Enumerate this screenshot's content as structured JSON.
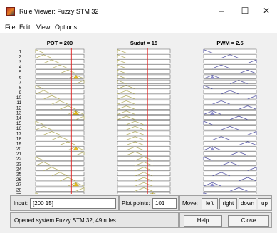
{
  "window": {
    "title": "Rule Viewer: Fuzzy STM 32",
    "minimize_glyph": "–",
    "maximize_glyph": "☐",
    "close_glyph": "✕",
    "icon": "matlab-app-icon"
  },
  "menu": [
    "File",
    "Edit",
    "View",
    "Options"
  ],
  "columns": [
    {
      "header": "POT = 200",
      "value": 200,
      "marker_fraction": 0.74
    },
    {
      "header": "Sudut = 15",
      "value": 15,
      "marker_fraction": 0.57
    },
    {
      "header": "PWM = 2.5",
      "value": 2.5
    }
  ],
  "rules_visible": [
    "1",
    "2",
    "3",
    "4",
    "5",
    "6",
    "7",
    "8",
    "9",
    "10",
    "11",
    "12",
    "13",
    "14",
    "15",
    "16",
    "17",
    "18",
    "19",
    "20",
    "21",
    "22",
    "23",
    "24",
    "25",
    "26",
    "27",
    "28",
    "29",
    "30"
  ],
  "rules_total": 49,
  "colors": {
    "mf_input": "#b9b36a",
    "mf_output": "#5a5aa8",
    "fire_fill": "#e8c020",
    "indicator": "#e02020"
  },
  "input": {
    "label": "Input:",
    "value": "[200 15]"
  },
  "plot_points": {
    "label": "Plot points:",
    "value": "101"
  },
  "move": {
    "label": "Move:",
    "buttons": [
      "left",
      "right",
      "down",
      "up"
    ]
  },
  "status": "Opened system Fuzzy STM 32, 49 rules",
  "help_label": "Help",
  "close_label": "Close"
}
